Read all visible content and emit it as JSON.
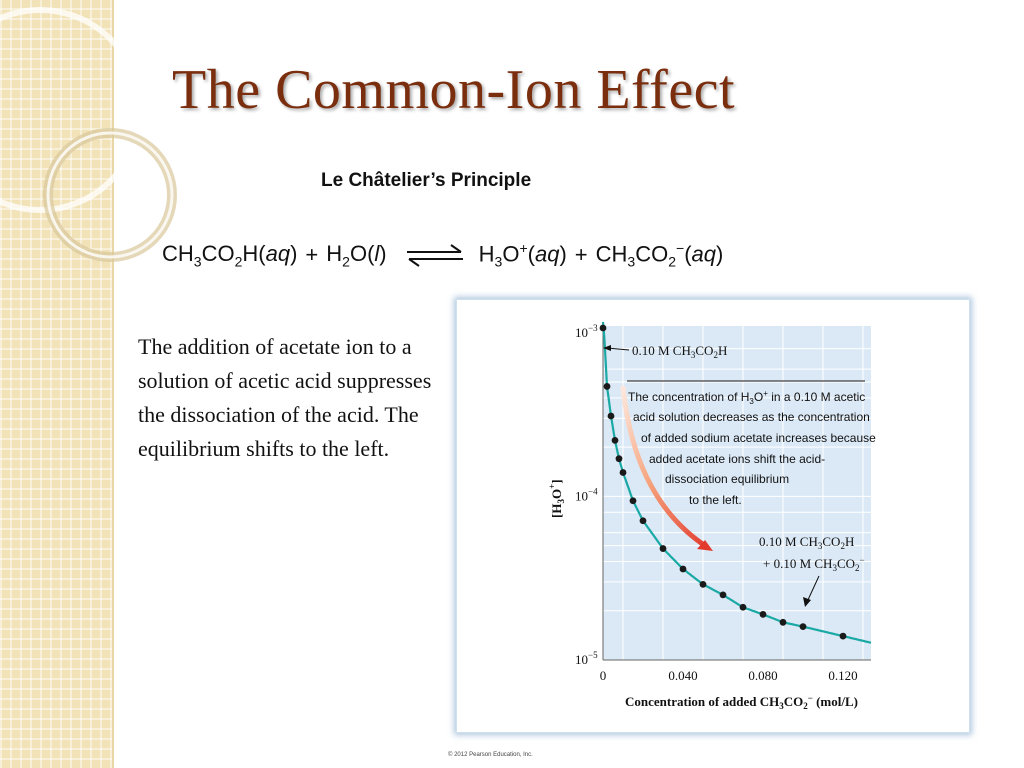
{
  "slide": {
    "title": "The Common-Ion Effect",
    "subtitle": "Le Châtelier’s Principle",
    "body": "The addition of acetate ion to a solution of acetic acid suppresses the dissociation of the acid. The equilibrium shifts to the left.",
    "copyright": "© 2012 Pearson Education, Inc."
  },
  "equation": {
    "reactant1": {
      "a": "CH",
      "s1": "3",
      "b": "CO",
      "s2": "2",
      "c": "H(",
      "state": "aq",
      "d": ")"
    },
    "plus1": "+",
    "reactant2": {
      "a": "H",
      "s1": "2",
      "b": "O(",
      "state": "l",
      "c": ")"
    },
    "product1": {
      "a": "H",
      "s1": "3",
      "b": "O",
      "sup": "+",
      "c": "(",
      "state": "aq",
      "d": ")"
    },
    "plus2": "+",
    "product2": {
      "a": "CH",
      "s1": "3",
      "b": "CO",
      "s2": "2",
      "sup": "−",
      "c": "(",
      "state": "aq",
      "d": ")"
    }
  },
  "chart_data": {
    "type": "scatter",
    "xlabel": {
      "a": "Concentration of added CH",
      "s1": "3",
      "b": "CO",
      "s2": "2",
      "sup": "−",
      "c": " (mol/L)"
    },
    "ylabel": {
      "a": "[H",
      "s1": "3",
      "b": "O",
      "sup": "+",
      "c": "]"
    },
    "x_ticks": [
      "0",
      "0.040",
      "0.080",
      "0.120"
    ],
    "x_tick_values": [
      0,
      0.04,
      0.08,
      0.12
    ],
    "y_ticks": [
      {
        "base": "10",
        "exp": "−3",
        "value": 0.001
      },
      {
        "base": "10",
        "exp": "−4",
        "value": 0.0001
      },
      {
        "base": "10",
        "exp": "−5",
        "value": 1e-05
      }
    ],
    "yscale": "log",
    "xlim": [
      0,
      0.134
    ],
    "ylim": [
      1e-05,
      0.0011
    ],
    "grid": true,
    "series": [
      {
        "x": [
          0,
          0.002,
          0.004,
          0.006,
          0.008,
          0.01,
          0.015,
          0.02,
          0.03,
          0.04,
          0.05,
          0.06,
          0.07,
          0.08,
          0.09,
          0.1,
          0.12
        ],
        "y": [
          0.00134,
          0.00047,
          0.00031,
          0.00022,
          0.00017,
          0.00014,
          9.4e-05,
          7.1e-05,
          4.8e-05,
          3.6e-05,
          2.9e-05,
          2.5e-05,
          2.1e-05,
          1.9e-05,
          1.7e-05,
          1.6e-05,
          1.4e-05
        ]
      }
    ],
    "annotations": {
      "top_label": {
        "a": "0.10 M CH",
        "s1": "3",
        "b": "CO",
        "s2": "2",
        "c": "H"
      },
      "bottom_label_line1": {
        "a": "0.10 M CH",
        "s1": "3",
        "b": "CO",
        "s2": "2",
        "c": "H"
      },
      "bottom_label_line2": {
        "a": "+ 0.10 M CH",
        "s1": "3",
        "b": "CO",
        "s2": "2",
        "sup": "−"
      },
      "note": [
        {
          "a": "The concentration of H",
          "s1": "3",
          "b": "O",
          "sup": "+",
          "c": " in a 0.10 M acetic"
        },
        {
          "a": "acid solution decreases as the concentration"
        },
        {
          "a": "of added sodium acetate increases because"
        },
        {
          "a": "added acetate ions shift the acid-"
        },
        {
          "a": "dissociation equilibrium"
        },
        {
          "a": "to the left."
        }
      ]
    },
    "colors": {
      "curve": "#1aa9a5",
      "point": "#1a1a1a",
      "plot_bg": "#dbe9f6",
      "grid": "#ffffff",
      "arrow": "#e23b2e"
    }
  }
}
